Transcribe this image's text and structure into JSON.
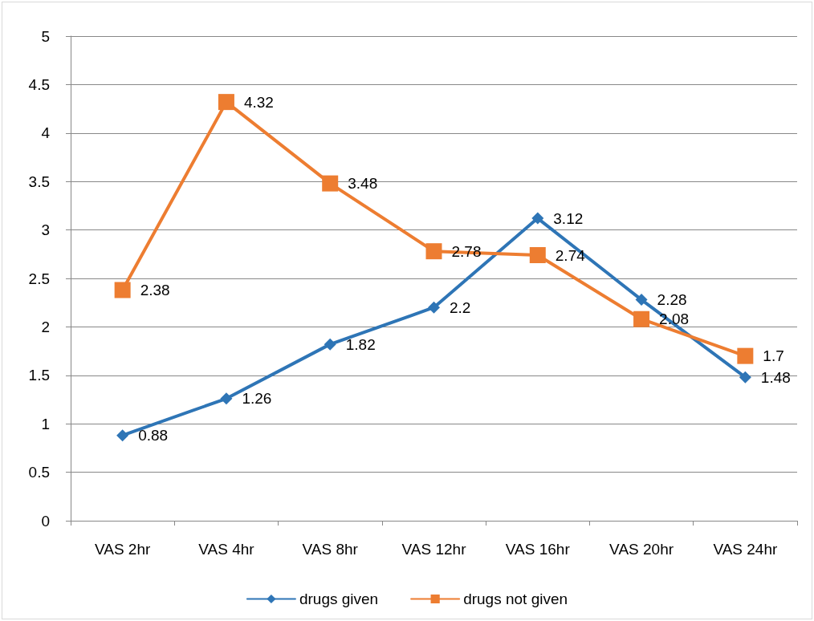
{
  "chart_data": {
    "type": "line",
    "categories": [
      "VAS 2hr",
      "VAS 4hr",
      "VAS 8hr",
      "VAS 12hr",
      "VAS 16hr",
      "VAS 20hr",
      "VAS 24hr"
    ],
    "series": [
      {
        "name": "drugs given",
        "color": "#2e75b6",
        "marker": "diamond",
        "values": [
          0.88,
          1.26,
          1.82,
          2.2,
          3.12,
          2.28,
          1.48
        ]
      },
      {
        "name": "drugs not given",
        "color": "#ed7d31",
        "marker": "square",
        "values": [
          2.38,
          4.32,
          3.48,
          2.78,
          2.74,
          2.08,
          1.7
        ]
      }
    ],
    "ylim": [
      0,
      5
    ],
    "yticks": [
      0,
      0.5,
      1,
      1.5,
      2,
      2.5,
      3,
      3.5,
      4,
      4.5,
      5
    ],
    "grid": "y",
    "legend": "bottom",
    "data_labels": true,
    "line_style": "solid"
  }
}
